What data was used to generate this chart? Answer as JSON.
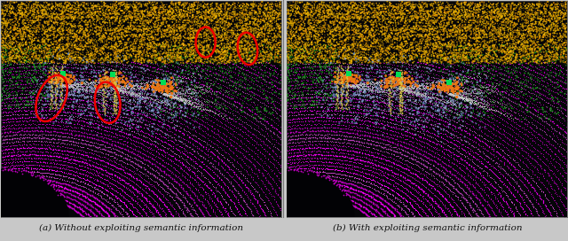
{
  "caption_left": "(a) Without exploiting semantic information",
  "caption_right": "(b) With exploiting semantic information",
  "fig_width": 6.4,
  "fig_height": 2.72,
  "background_color": "#c8c8c8",
  "caption_fontsize": 7.5,
  "caption_color": "#111111"
}
